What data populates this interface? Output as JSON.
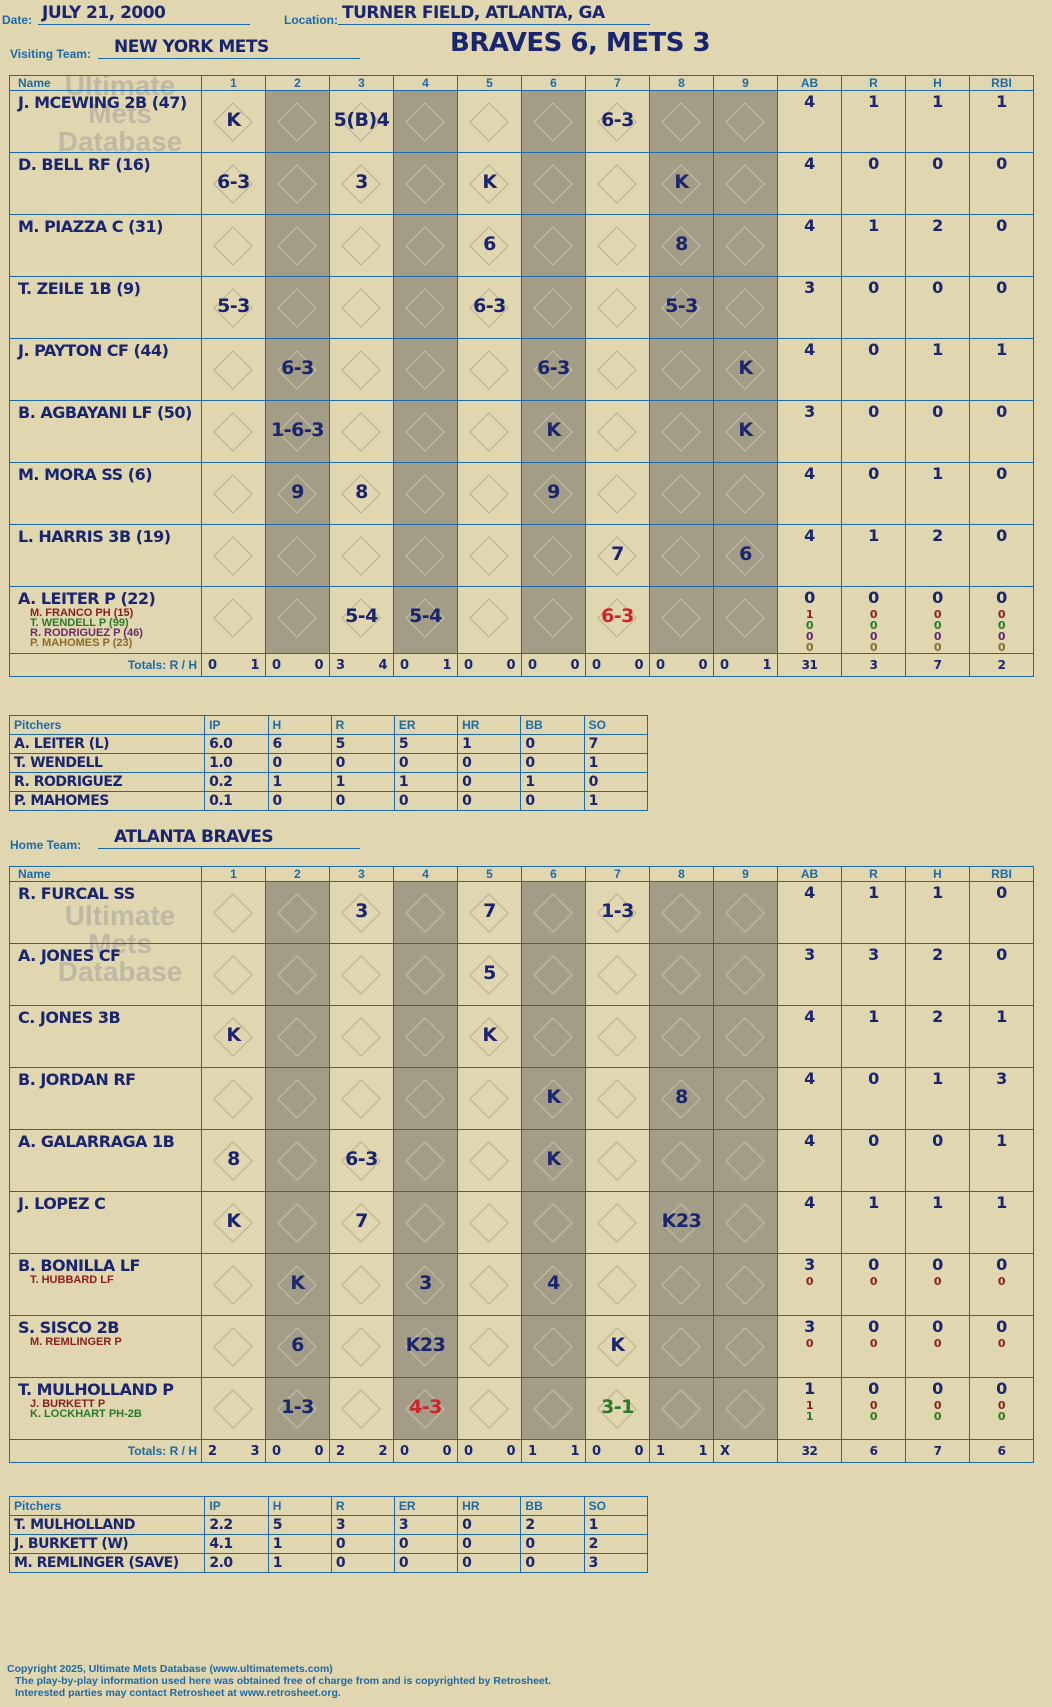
{
  "header": {
    "date_label": "Date:",
    "date": "JULY 21, 2000",
    "location_label": "Location:",
    "location": "TURNER FIELD, ATLANTA, GA",
    "result": "BRAVES 6, METS 3"
  },
  "visitors": {
    "team_label": "Visiting Team:",
    "team": "NEW YORK METS",
    "columns": [
      "Name",
      "1",
      "2",
      "3",
      "4",
      "5",
      "6",
      "7",
      "8",
      "9",
      "AB",
      "R",
      "H",
      "RBI"
    ],
    "rows": [
      {
        "name": "J. MCEWING 2B (47)",
        "plays": [
          "K",
          "",
          "5(B)4",
          "",
          "",
          "",
          "6-3",
          "",
          ""
        ],
        "stats": [
          "4",
          "1",
          "1",
          "1"
        ],
        "subs": []
      },
      {
        "name": "D. BELL RF (16)",
        "plays": [
          "6-3",
          "",
          "3",
          "",
          "K",
          "",
          "",
          "K",
          ""
        ],
        "stats": [
          "4",
          "0",
          "0",
          "0"
        ],
        "subs": []
      },
      {
        "name": "M. PIAZZA C (31)",
        "plays": [
          "",
          "",
          "",
          "",
          "6",
          "",
          "",
          "8",
          ""
        ],
        "stats": [
          "4",
          "1",
          "2",
          "0"
        ],
        "subs": []
      },
      {
        "name": "T. ZEILE 1B (9)",
        "plays": [
          "5-3",
          "",
          "",
          "",
          "6-3",
          "",
          "",
          "5-3",
          ""
        ],
        "stats": [
          "3",
          "0",
          "0",
          "0"
        ],
        "subs": []
      },
      {
        "name": "J. PAYTON CF (44)",
        "plays": [
          "",
          "6-3",
          "",
          "",
          "",
          "6-3",
          "",
          "",
          "K"
        ],
        "stats": [
          "4",
          "0",
          "1",
          "1"
        ],
        "subs": []
      },
      {
        "name": "B. AGBAYANI LF (50)",
        "plays": [
          "",
          "1-6-3",
          "",
          "",
          "",
          "K",
          "",
          "",
          "K"
        ],
        "stats": [
          "3",
          "0",
          "0",
          "0"
        ],
        "subs": []
      },
      {
        "name": "M. MORA SS (6)",
        "plays": [
          "",
          "9",
          "8",
          "",
          "",
          "9",
          "",
          "",
          ""
        ],
        "stats": [
          "4",
          "0",
          "1",
          "0"
        ],
        "subs": []
      },
      {
        "name": "L. HARRIS 3B (19)",
        "plays": [
          "",
          "",
          "",
          "",
          "",
          "",
          "7",
          "",
          "6"
        ],
        "stats": [
          "4",
          "1",
          "2",
          "0"
        ],
        "subs": []
      },
      {
        "name": "A. LEITER P (22)",
        "plays": [
          "",
          "",
          "5-4",
          "5-4",
          "",
          "",
          "6-3",
          "",
          ""
        ],
        "stats": [
          "0",
          "0",
          "0",
          "0"
        ],
        "subs": [
          {
            "name": "M. FRANCO PH (15)",
            "stats": [
              "1",
              "0",
              "0",
              "0"
            ]
          },
          {
            "name": "T. WENDELL P (99)",
            "stats": [
              "0",
              "0",
              "0",
              "0"
            ]
          },
          {
            "name": "R. RODRIGUEZ P (46)",
            "stats": [
              "0",
              "0",
              "0",
              "0"
            ]
          },
          {
            "name": "P. MAHOMES P (23)",
            "stats": [
              "0",
              "0",
              "0",
              "0"
            ]
          }
        ]
      }
    ],
    "pitcher_change_notes": [
      "MULHOLLAND",
      "REMLINGER",
      "BURKETT"
    ],
    "totals_label": "Totals:",
    "totals_rh": [
      "R",
      "H"
    ],
    "inning_totals": [
      [
        "0",
        "1"
      ],
      [
        "0",
        "0"
      ],
      [
        "3",
        "4"
      ],
      [
        "0",
        "1"
      ],
      [
        "0",
        "0"
      ],
      [
        "0",
        "0"
      ],
      [
        "0",
        "0"
      ],
      [
        "0",
        "0"
      ],
      [
        "0",
        "1"
      ]
    ],
    "game_totals": [
      "31",
      "3",
      "7",
      "2"
    ],
    "pitchers_header": [
      "Pitchers",
      "IP",
      "H",
      "R",
      "ER",
      "HR",
      "BB",
      "SO"
    ],
    "pitchers": [
      [
        "A. LEITER (L)",
        "6.0",
        "6",
        "5",
        "5",
        "1",
        "0",
        "7"
      ],
      [
        "T. WENDELL",
        "1.0",
        "0",
        "0",
        "0",
        "0",
        "0",
        "1"
      ],
      [
        "R. RODRIGUEZ",
        "0.2",
        "1",
        "1",
        "1",
        "0",
        "1",
        "0"
      ],
      [
        "P. MAHOMES",
        "0.1",
        "0",
        "0",
        "0",
        "0",
        "0",
        "1"
      ]
    ]
  },
  "home": {
    "team_label": "Home Team:",
    "team": "ATLANTA BRAVES",
    "rows": [
      {
        "name": "R. FURCAL SS",
        "plays": [
          "",
          "",
          "3",
          "",
          "7",
          "",
          "1-3",
          "",
          ""
        ],
        "stats": [
          "4",
          "1",
          "1",
          "0"
        ],
        "subs": []
      },
      {
        "name": "A. JONES CF",
        "plays": [
          "",
          "",
          "",
          "",
          "5",
          "",
          "",
          "",
          ""
        ],
        "stats": [
          "3",
          "3",
          "2",
          "0"
        ],
        "subs": []
      },
      {
        "name": "C. JONES 3B",
        "plays": [
          "K",
          "",
          "",
          "",
          "K",
          "",
          "",
          "",
          ""
        ],
        "stats": [
          "4",
          "1",
          "2",
          "1"
        ],
        "subs": []
      },
      {
        "name": "B. JORDAN RF",
        "plays": [
          "",
          "",
          "",
          "",
          "",
          "K",
          "",
          "8",
          ""
        ],
        "stats": [
          "4",
          "0",
          "1",
          "3"
        ],
        "subs": []
      },
      {
        "name": "A. GALARRAGA 1B",
        "plays": [
          "8",
          "",
          "6-3",
          "",
          "",
          "K",
          "",
          "",
          ""
        ],
        "stats": [
          "4",
          "0",
          "0",
          "1"
        ],
        "subs": []
      },
      {
        "name": "J. LOPEZ C",
        "plays": [
          "K",
          "",
          "7",
          "",
          "",
          "",
          "",
          "K23",
          ""
        ],
        "stats": [
          "4",
          "1",
          "1",
          "1"
        ],
        "subs": []
      },
      {
        "name": "B. BONILLA LF",
        "plays": [
          "",
          "K",
          "",
          "3",
          "",
          "4",
          "",
          "",
          ""
        ],
        "stats": [
          "3",
          "0",
          "0",
          "0"
        ],
        "subs": [
          {
            "name": "T. HUBBARD LF",
            "stats": [
              "0",
              "0",
              "0",
              "0"
            ]
          }
        ]
      },
      {
        "name": "S. SISCO 2B",
        "plays": [
          "",
          "6",
          "",
          "K23",
          "",
          "",
          "K",
          "",
          ""
        ],
        "stats": [
          "3",
          "0",
          "0",
          "0"
        ],
        "subs": [
          {
            "name": "M. REMLINGER P",
            "stats": [
              "0",
              "0",
              "0",
              "0"
            ]
          }
        ]
      },
      {
        "name": "T. MULHOLLAND P",
        "plays": [
          "",
          "1-3",
          "",
          "4-3",
          "",
          "",
          "3-1",
          "",
          ""
        ],
        "stats": [
          "1",
          "0",
          "0",
          "0"
        ],
        "subs": [
          {
            "name": "J. BURKETT P",
            "stats": [
              "1",
              "0",
              "0",
              "0"
            ]
          },
          {
            "name": "K. LOCKHART PH-2B",
            "stats": [
              "1",
              "0",
              "0",
              "0"
            ]
          }
        ]
      }
    ],
    "pitcher_change_notes": [
      "LEITER",
      "RODRIGUEZ",
      "MAHOMES",
      "WENDELL"
    ],
    "inning_totals": [
      [
        "2",
        "3"
      ],
      [
        "0",
        "0"
      ],
      [
        "2",
        "2"
      ],
      [
        "0",
        "0"
      ],
      [
        "0",
        "0"
      ],
      [
        "1",
        "1"
      ],
      [
        "0",
        "0"
      ],
      [
        "1",
        "1"
      ],
      [
        "X",
        ""
      ]
    ],
    "game_totals": [
      "32",
      "6",
      "7",
      "6"
    ],
    "pitchers": [
      [
        "T. MULHOLLAND",
        "2.2",
        "5",
        "3",
        "3",
        "0",
        "2",
        "1"
      ],
      [
        "J. BURKETT (W)",
        "4.1",
        "1",
        "0",
        "0",
        "0",
        "0",
        "2"
      ],
      [
        "M. REMLINGER (SAVE)",
        "2.0",
        "1",
        "0",
        "0",
        "0",
        "0",
        "3"
      ]
    ]
  },
  "watermark": [
    "Ultimate",
    "Mets",
    "Database",
    "ultimatemets.com"
  ],
  "footer": [
    "Copyright 2025, Ultimate Mets Database (www.ultimatemets.com)",
    "The play-by-play information used here was obtained free of charge from and is copyrighted by Retrosheet.",
    "Interested parties may contact Retrosheet at www.retrosheet.org."
  ],
  "colors": {
    "background": "#e0d6b0",
    "grid": "#1d6aa8",
    "ink": "#1a2570",
    "dark_column": "#a39c86",
    "note_red": "#d2222a"
  }
}
